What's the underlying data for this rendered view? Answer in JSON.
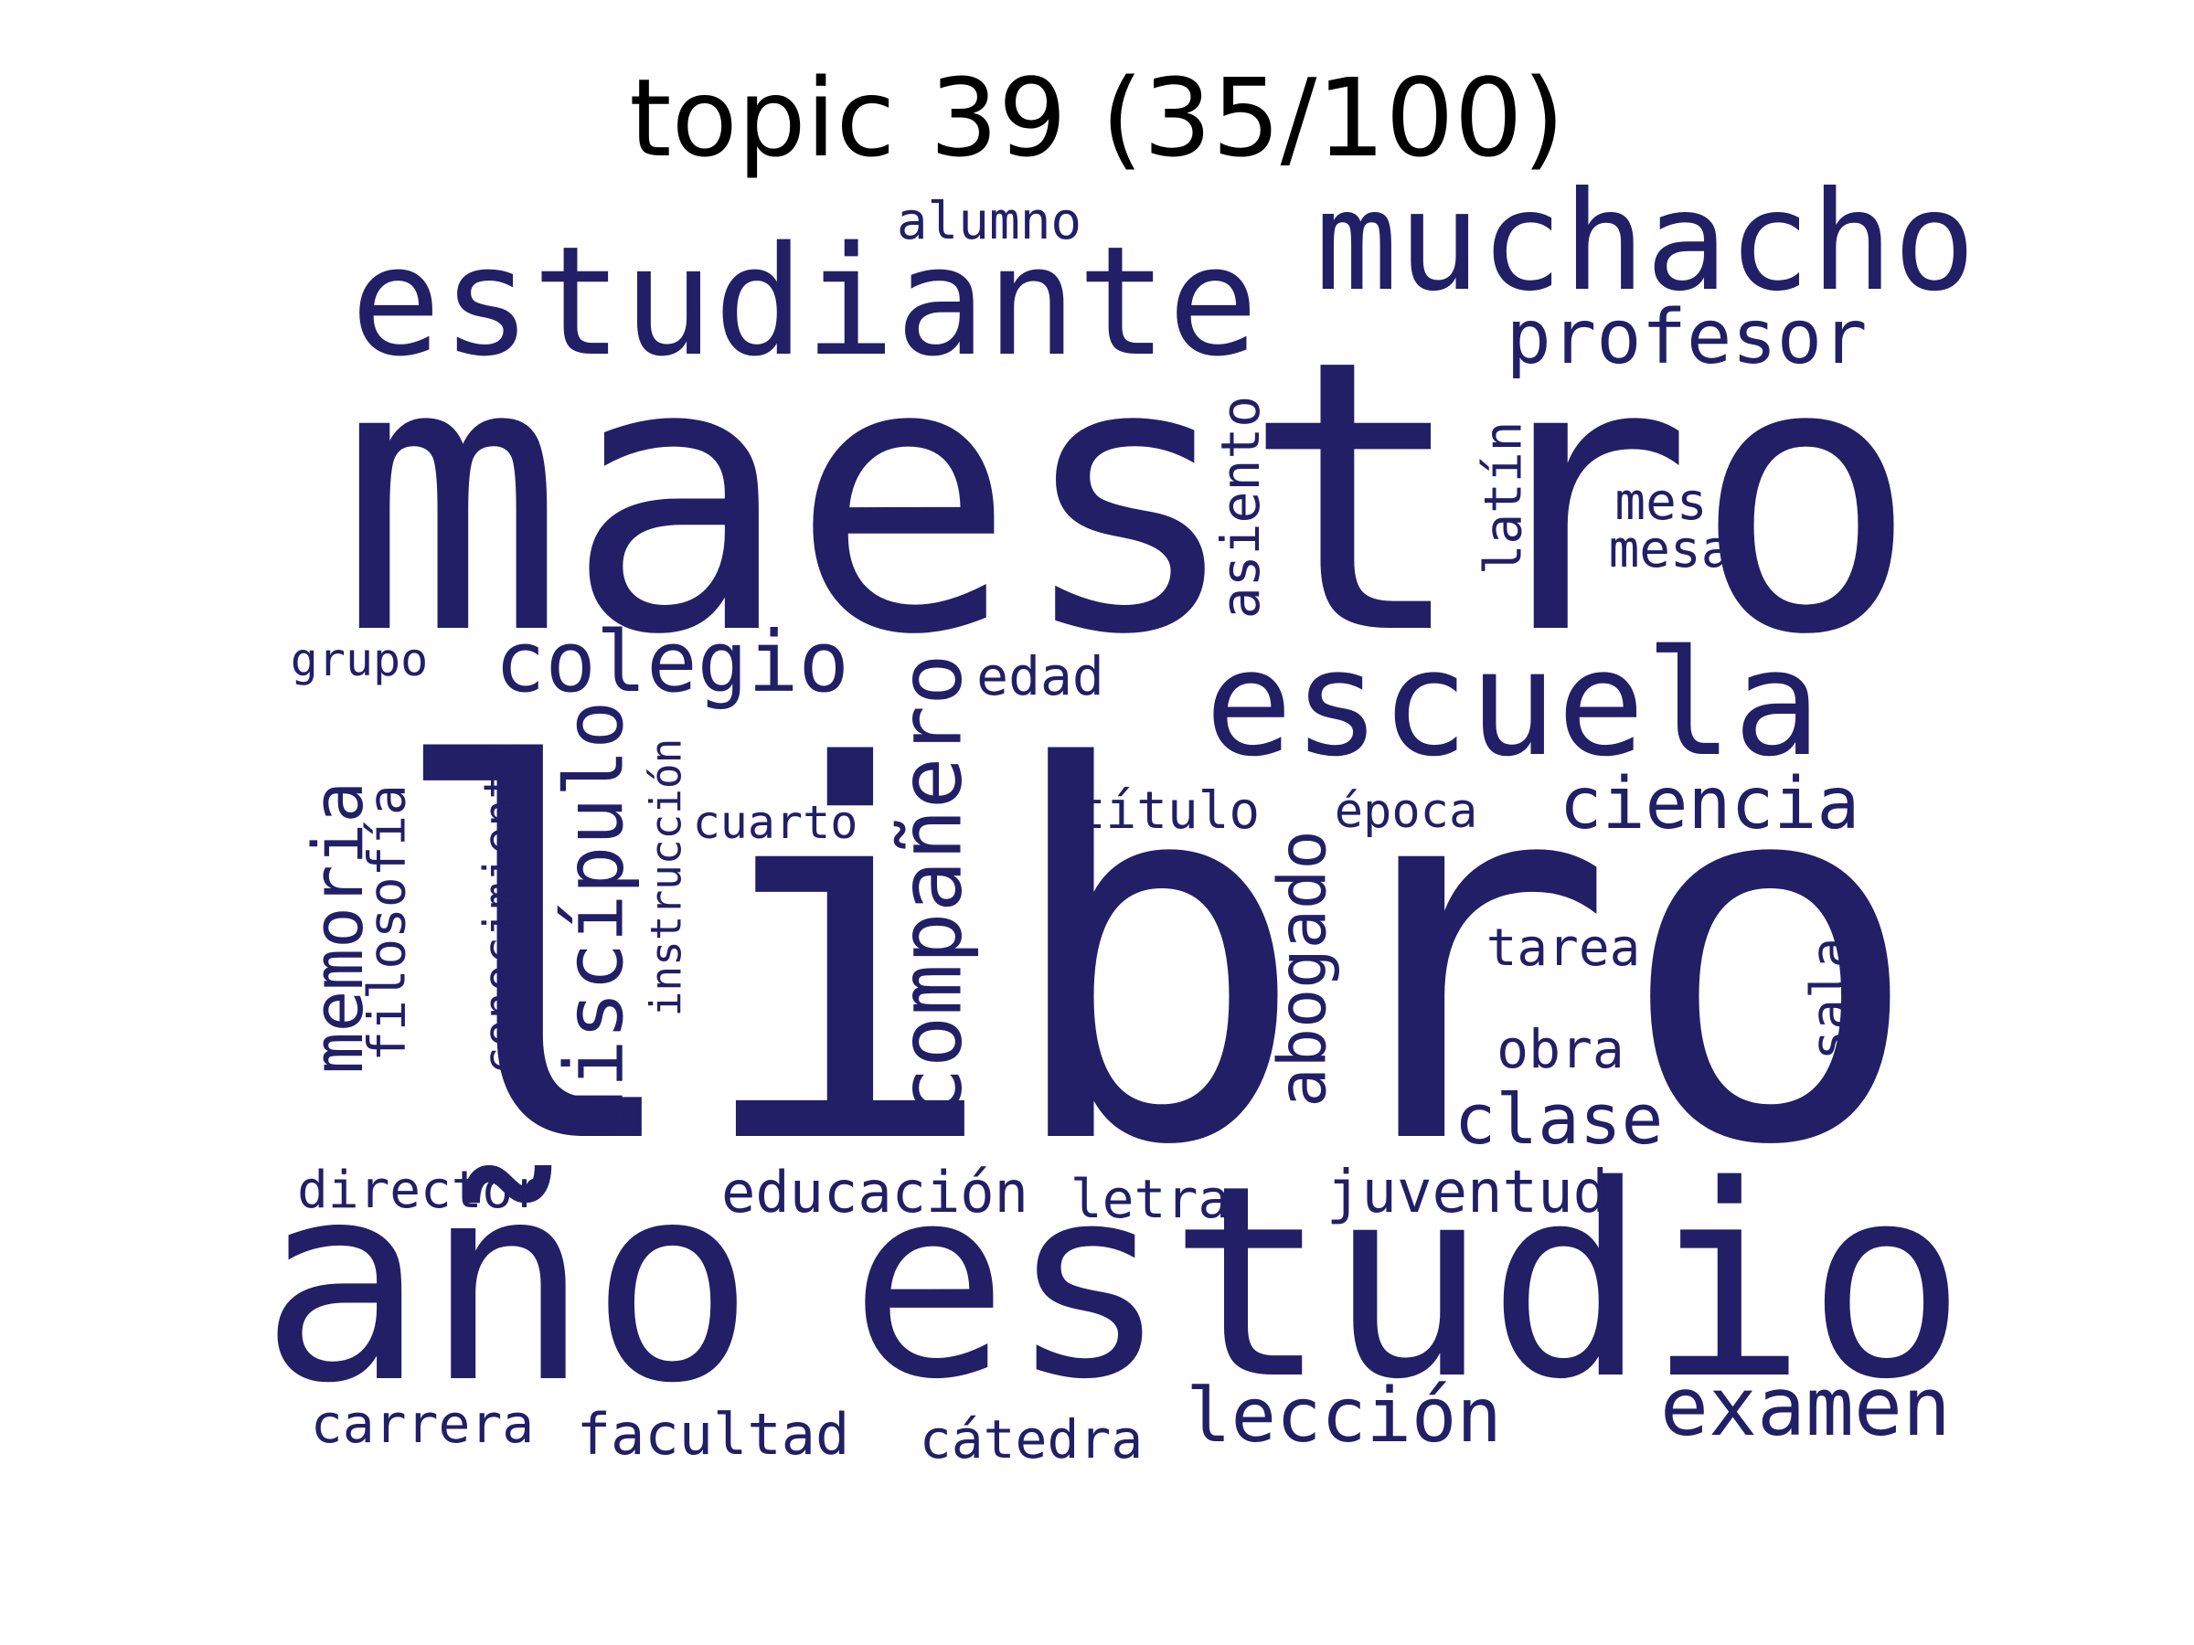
{
  "title": "topic 39 (35/100)",
  "colors": {
    "word": "#221f66",
    "background": "#ffffff",
    "title": "#000000"
  },
  "words": [
    {
      "text": "libro",
      "weight": 1.0
    },
    {
      "text": "maestro",
      "weight": 0.92
    },
    {
      "text": "año",
      "weight": 0.62
    },
    {
      "text": "estudio",
      "weight": 0.6
    },
    {
      "text": "estudiante",
      "weight": 0.45
    },
    {
      "text": "escuela",
      "weight": 0.43
    },
    {
      "text": "muchacho",
      "weight": 0.4
    },
    {
      "text": "compañero",
      "weight": 0.22
    },
    {
      "text": "colegio",
      "weight": 0.21
    },
    {
      "text": "discípulo",
      "weight": 0.2
    },
    {
      "text": "profesor",
      "weight": 0.2
    },
    {
      "text": "examen",
      "weight": 0.2
    },
    {
      "text": "ciencia",
      "weight": 0.18
    },
    {
      "text": "lección",
      "weight": 0.18
    },
    {
      "text": "memoria",
      "weight": 0.17
    },
    {
      "text": "abogado",
      "weight": 0.17
    },
    {
      "text": "clase",
      "weight": 0.17
    },
    {
      "text": "asiento",
      "weight": 0.14
    },
    {
      "text": "juventud",
      "weight": 0.14
    },
    {
      "text": "facultad",
      "weight": 0.14
    },
    {
      "text": "educación",
      "weight": 0.14
    },
    {
      "text": "filosofía",
      "weight": 0.13
    },
    {
      "text": "conocimiento",
      "weight": 0.12
    },
    {
      "text": "alumno",
      "weight": 0.13
    },
    {
      "text": "carrera",
      "weight": 0.13
    },
    {
      "text": "letra",
      "weight": 0.13
    },
    {
      "text": "cátedra",
      "weight": 0.13
    },
    {
      "text": "obra",
      "weight": 0.13
    },
    {
      "text": "director",
      "weight": 0.13
    },
    {
      "text": "edad",
      "weight": 0.13
    },
    {
      "text": "título",
      "weight": 0.12
    },
    {
      "text": "latín",
      "weight": 0.12
    },
    {
      "text": "mes",
      "weight": 0.12
    },
    {
      "text": "mesa",
      "weight": 0.12
    },
    {
      "text": "tarea",
      "weight": 0.12
    },
    {
      "text": "sala",
      "weight": 0.12
    },
    {
      "text": "instrucción",
      "weight": 0.11
    },
    {
      "text": "cuarto",
      "weight": 0.11
    },
    {
      "text": "época",
      "weight": 0.11
    },
    {
      "text": "grupo",
      "weight": 0.1
    }
  ]
}
